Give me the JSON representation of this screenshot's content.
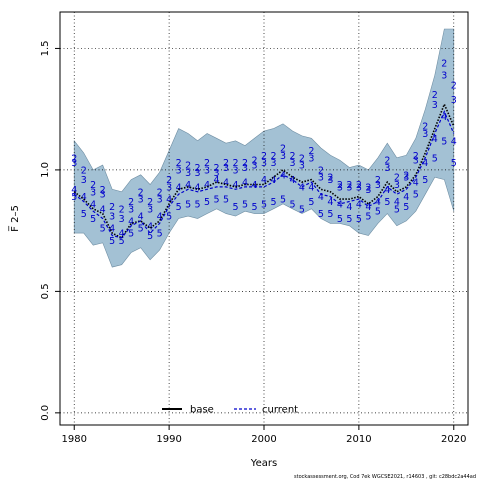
{
  "chart_data": {
    "type": "line",
    "title": "",
    "xlabel": "Years",
    "ylabel": "F̅ 2–5",
    "xlim": [
      1978.5,
      2021.5
    ],
    "ylim": [
      -0.05,
      1.65
    ],
    "xticks": [
      1980,
      1990,
      2000,
      2010,
      2020
    ],
    "yticks": [
      0.0,
      0.5,
      1.0,
      1.5
    ],
    "grid": true,
    "legend": {
      "placement": "bottom-center",
      "entries": [
        "base",
        "current"
      ]
    },
    "x": [
      1980,
      1981,
      1982,
      1983,
      1984,
      1985,
      1986,
      1987,
      1988,
      1989,
      1990,
      1991,
      1992,
      1993,
      1994,
      1995,
      1996,
      1997,
      1998,
      1999,
      2000,
      2001,
      2002,
      2003,
      2004,
      2005,
      2006,
      2007,
      2008,
      2009,
      2010,
      2011,
      2012,
      2013,
      2014,
      2015,
      2016,
      2017,
      2018,
      2019,
      2020
    ],
    "series": [
      {
        "name": "base",
        "style": "solid",
        "color": "#000000",
        "values": [
          0.91,
          0.88,
          0.84,
          0.82,
          0.74,
          0.72,
          0.78,
          0.79,
          0.76,
          0.79,
          0.86,
          0.92,
          0.93,
          0.92,
          0.93,
          0.95,
          0.94,
          0.93,
          0.94,
          0.94,
          0.94,
          0.97,
          1.0,
          0.97,
          0.95,
          0.96,
          0.92,
          0.91,
          0.88,
          0.88,
          0.89,
          0.86,
          0.89,
          0.95,
          0.91,
          0.93,
          0.98,
          1.07,
          1.17,
          1.27,
          1.18
        ]
      },
      {
        "name": "current",
        "style": "dashed",
        "color": "#0000cc",
        "values": [
          0.9,
          0.87,
          0.83,
          0.8,
          0.73,
          0.72,
          0.77,
          0.79,
          0.74,
          0.78,
          0.85,
          0.9,
          0.92,
          0.91,
          0.92,
          0.93,
          0.93,
          0.92,
          0.93,
          0.93,
          0.93,
          0.95,
          0.98,
          0.96,
          0.93,
          0.95,
          0.9,
          0.89,
          0.86,
          0.87,
          0.88,
          0.85,
          0.87,
          0.93,
          0.9,
          0.92,
          0.97,
          1.05,
          1.15,
          1.24,
          1.15
        ]
      }
    ],
    "confidence_band": {
      "color": "#a3c1d4",
      "upper": [
        1.12,
        1.07,
        1.0,
        1.02,
        0.92,
        0.91,
        0.96,
        0.98,
        0.94,
        0.99,
        1.08,
        1.17,
        1.15,
        1.12,
        1.15,
        1.13,
        1.11,
        1.12,
        1.1,
        1.13,
        1.16,
        1.17,
        1.19,
        1.16,
        1.14,
        1.13,
        1.09,
        1.06,
        1.04,
        1.01,
        1.02,
        1.0,
        1.05,
        1.11,
        1.05,
        1.06,
        1.13,
        1.25,
        1.39,
        1.58,
        1.58
      ],
      "lower": [
        0.74,
        0.74,
        0.69,
        0.7,
        0.6,
        0.61,
        0.66,
        0.68,
        0.63,
        0.67,
        0.74,
        0.8,
        0.81,
        0.8,
        0.82,
        0.84,
        0.82,
        0.81,
        0.83,
        0.82,
        0.82,
        0.84,
        0.86,
        0.84,
        0.82,
        0.84,
        0.8,
        0.78,
        0.78,
        0.77,
        0.74,
        0.73,
        0.78,
        0.82,
        0.77,
        0.79,
        0.83,
        0.9,
        0.97,
        0.96,
        0.83
      ]
    },
    "age_labels": [
      {
        "age": "2",
        "values": [
          1.05,
          1.0,
          0.94,
          0.92,
          0.85,
          0.84,
          0.87,
          0.91,
          0.87,
          0.91,
          0.96,
          1.03,
          1.02,
          1.01,
          1.03,
          1.01,
          1.03,
          1.03,
          1.03,
          1.04,
          1.06,
          1.06,
          1.09,
          1.06,
          1.05,
          1.08,
          1.0,
          0.97,
          0.94,
          0.94,
          0.94,
          0.93,
          0.96,
          1.04,
          0.97,
          0.98,
          1.06,
          1.18,
          1.31,
          1.44,
          1.35
        ]
      },
      {
        "age": "3",
        "values": [
          1.03,
          0.96,
          0.91,
          0.9,
          0.81,
          0.8,
          0.84,
          0.88,
          0.84,
          0.88,
          0.93,
          1.0,
          0.99,
          0.99,
          1.0,
          0.99,
          1.01,
          1.0,
          1.01,
          1.02,
          1.03,
          1.03,
          1.06,
          1.03,
          1.02,
          1.05,
          0.97,
          0.96,
          0.93,
          0.93,
          0.93,
          0.92,
          0.94,
          1.01,
          0.94,
          0.97,
          1.04,
          1.15,
          1.27,
          1.39,
          1.29
        ]
      },
      {
        "age": "4",
        "values": [
          0.92,
          0.89,
          0.86,
          0.84,
          0.76,
          0.74,
          0.79,
          0.81,
          0.77,
          0.81,
          0.88,
          0.93,
          0.94,
          0.93,
          0.94,
          0.96,
          0.95,
          0.94,
          0.95,
          0.94,
          0.96,
          0.96,
          0.98,
          0.96,
          0.93,
          0.93,
          0.89,
          0.87,
          0.86,
          0.85,
          0.86,
          0.85,
          0.87,
          0.92,
          0.87,
          0.89,
          0.95,
          1.03,
          1.13,
          1.22,
          1.12
        ]
      },
      {
        "age": "5",
        "values": [
          0.89,
          0.82,
          0.8,
          0.76,
          0.71,
          0.71,
          0.74,
          0.76,
          0.73,
          0.74,
          0.81,
          0.85,
          0.86,
          0.86,
          0.87,
          0.88,
          0.88,
          0.85,
          0.86,
          0.85,
          0.86,
          0.87,
          0.88,
          0.86,
          0.84,
          0.87,
          0.82,
          0.82,
          0.8,
          0.8,
          0.8,
          0.81,
          0.83,
          0.87,
          0.84,
          0.85,
          0.9,
          0.96,
          1.05,
          1.12,
          1.03
        ]
      }
    ]
  },
  "footer": {
    "text": "stockassessment.org,  Cod  7ek  WGCSE2021,  r14603 ,  git:  c28bdc2a44ad"
  }
}
